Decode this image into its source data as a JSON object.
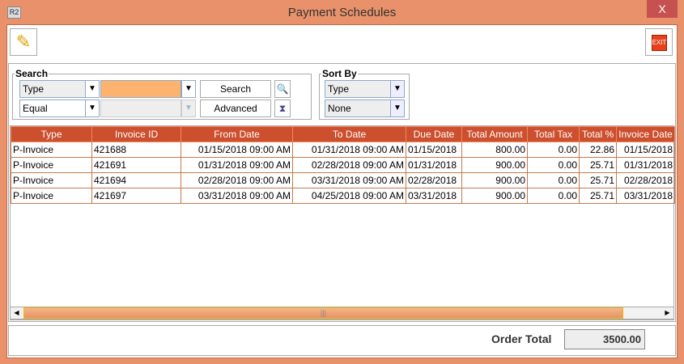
{
  "window": {
    "title": "Payment Schedules",
    "app_icon": "R2",
    "close": "X"
  },
  "toolbar": {
    "edit_icon": "pencil-icon",
    "exit_label": "EXIT"
  },
  "search": {
    "legend": "Search",
    "field": "Type",
    "value": "",
    "operator": "Equal",
    "value2": "",
    "search_label": "Search",
    "advanced_label": "Advanced"
  },
  "sort": {
    "legend": "Sort By",
    "primary": "Type",
    "secondary": "None"
  },
  "table": {
    "columns": [
      "Type",
      "Invoice ID",
      "From Date",
      "To Date",
      "Due Date",
      "Total Amount",
      "Total Tax",
      "Total %",
      "Invoice Date"
    ],
    "rows": [
      [
        "P-Invoice",
        "421688",
        "01/15/2018 09:00 AM",
        "01/31/2018 09:00 AM",
        "01/15/2018",
        "800.00",
        "0.00",
        "22.86",
        "01/15/2018"
      ],
      [
        "P-Invoice",
        "421691",
        "01/31/2018 09:00 AM",
        "02/28/2018 09:00 AM",
        "01/31/2018",
        "900.00",
        "0.00",
        "25.71",
        "01/31/2018"
      ],
      [
        "P-Invoice",
        "421694",
        "02/28/2018 09:00 AM",
        "03/31/2018 09:00 AM",
        "02/28/2018",
        "900.00",
        "0.00",
        "25.71",
        "02/28/2018"
      ],
      [
        "P-Invoice",
        "421697",
        "03/31/2018 09:00 AM",
        "04/25/2018 09:00 AM",
        "03/31/2018",
        "900.00",
        "0.00",
        "25.71",
        "03/31/2018"
      ]
    ]
  },
  "footer": {
    "order_total_label": "Order Total",
    "order_total": "3500.00"
  },
  "colors": {
    "accent": "#E9916A",
    "header": "#CC4F2E",
    "search_input": "#FDB36E"
  }
}
